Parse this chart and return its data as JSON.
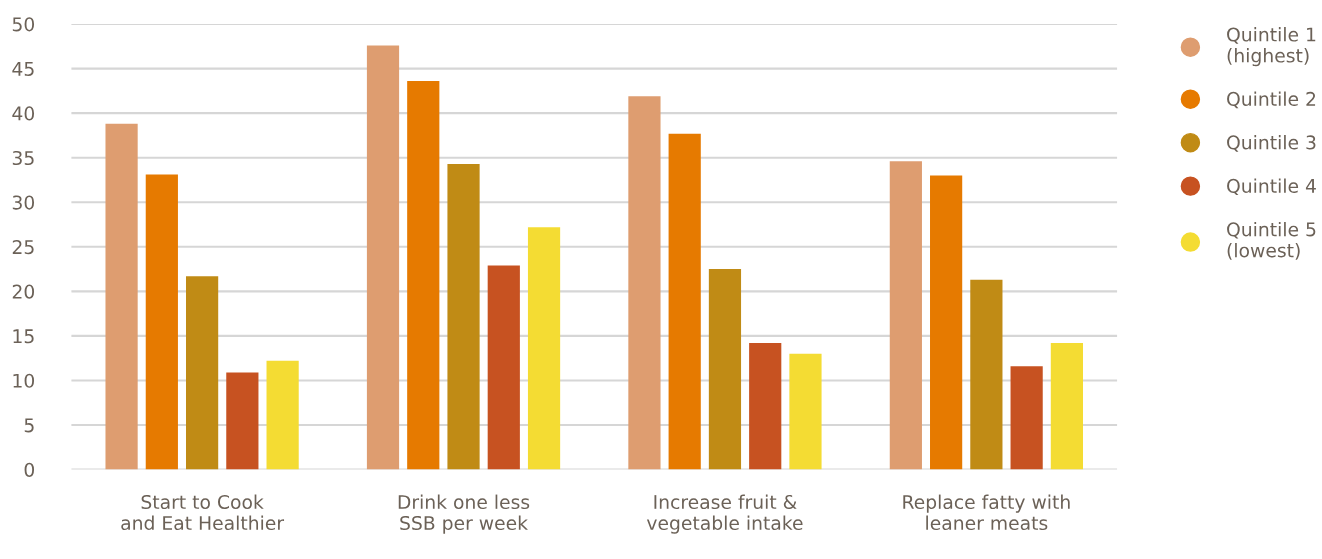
{
  "chart_data": {
    "type": "bar",
    "categories": [
      "Start to Cook\nand Eat Healthier",
      "Drink one less\nSSB per week",
      "Increase fruit &\nvegetable intake",
      "Replace fatty with\nleaner meats"
    ],
    "series": [
      {
        "name": "Quintile 1\n(highest)",
        "color": "#de9d70",
        "values": [
          38.8,
          47.6,
          41.9,
          34.6
        ]
      },
      {
        "name": "Quintile 2",
        "color": "#e67a00",
        "values": [
          33.1,
          43.6,
          37.7,
          33.0
        ]
      },
      {
        "name": "Quintile 3",
        "color": "#c08b15",
        "values": [
          21.7,
          34.3,
          22.5,
          21.3
        ]
      },
      {
        "name": "Quintile 4",
        "color": "#c75221",
        "values": [
          10.9,
          22.9,
          14.2,
          11.6
        ]
      },
      {
        "name": "Quintile 5\n(lowest)",
        "color": "#f4dc33",
        "values": [
          12.2,
          27.2,
          13.0,
          14.2
        ]
      }
    ],
    "ylim": [
      0,
      50
    ],
    "yticks": [
      0,
      5,
      10,
      15,
      20,
      25,
      30,
      35,
      40,
      45,
      50
    ],
    "grid": "y",
    "legend": "right",
    "marker": "circle"
  }
}
